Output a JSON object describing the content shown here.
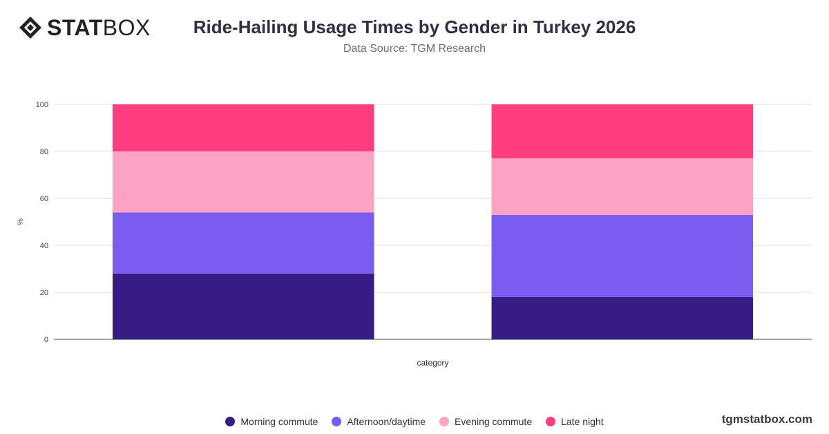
{
  "brand": {
    "logo_bold": "STAT",
    "logo_light": "BOX",
    "watermark": "tgmstatbox.com"
  },
  "header": {
    "title": "Ride-Hailing Usage Times by Gender in Turkey 2026",
    "subtitle": "Data Source: TGM Research"
  },
  "colors": {
    "morning": "#361d85",
    "afternoon": "#7b5cf0",
    "evening": "#fca2c2",
    "late": "#ff3d7f"
  },
  "chart_data": {
    "type": "bar",
    "stacked": true,
    "categories": [
      "",
      ""
    ],
    "series": [
      {
        "name": "Morning commute",
        "values": [
          28,
          18
        ],
        "color": "#361d85"
      },
      {
        "name": "Afternoon/daytime",
        "values": [
          26,
          35
        ],
        "color": "#7b5cf0"
      },
      {
        "name": "Evening commute",
        "values": [
          26,
          24
        ],
        "color": "#fca2c2"
      },
      {
        "name": "Late night",
        "values": [
          20,
          23
        ],
        "color": "#ff3d7f"
      }
    ],
    "xlabel": "category",
    "ylabel": "%",
    "ylim": [
      0,
      100
    ],
    "yticks": [
      0,
      20,
      40,
      60,
      80,
      100
    ],
    "grid": true,
    "legend": "bottom"
  }
}
